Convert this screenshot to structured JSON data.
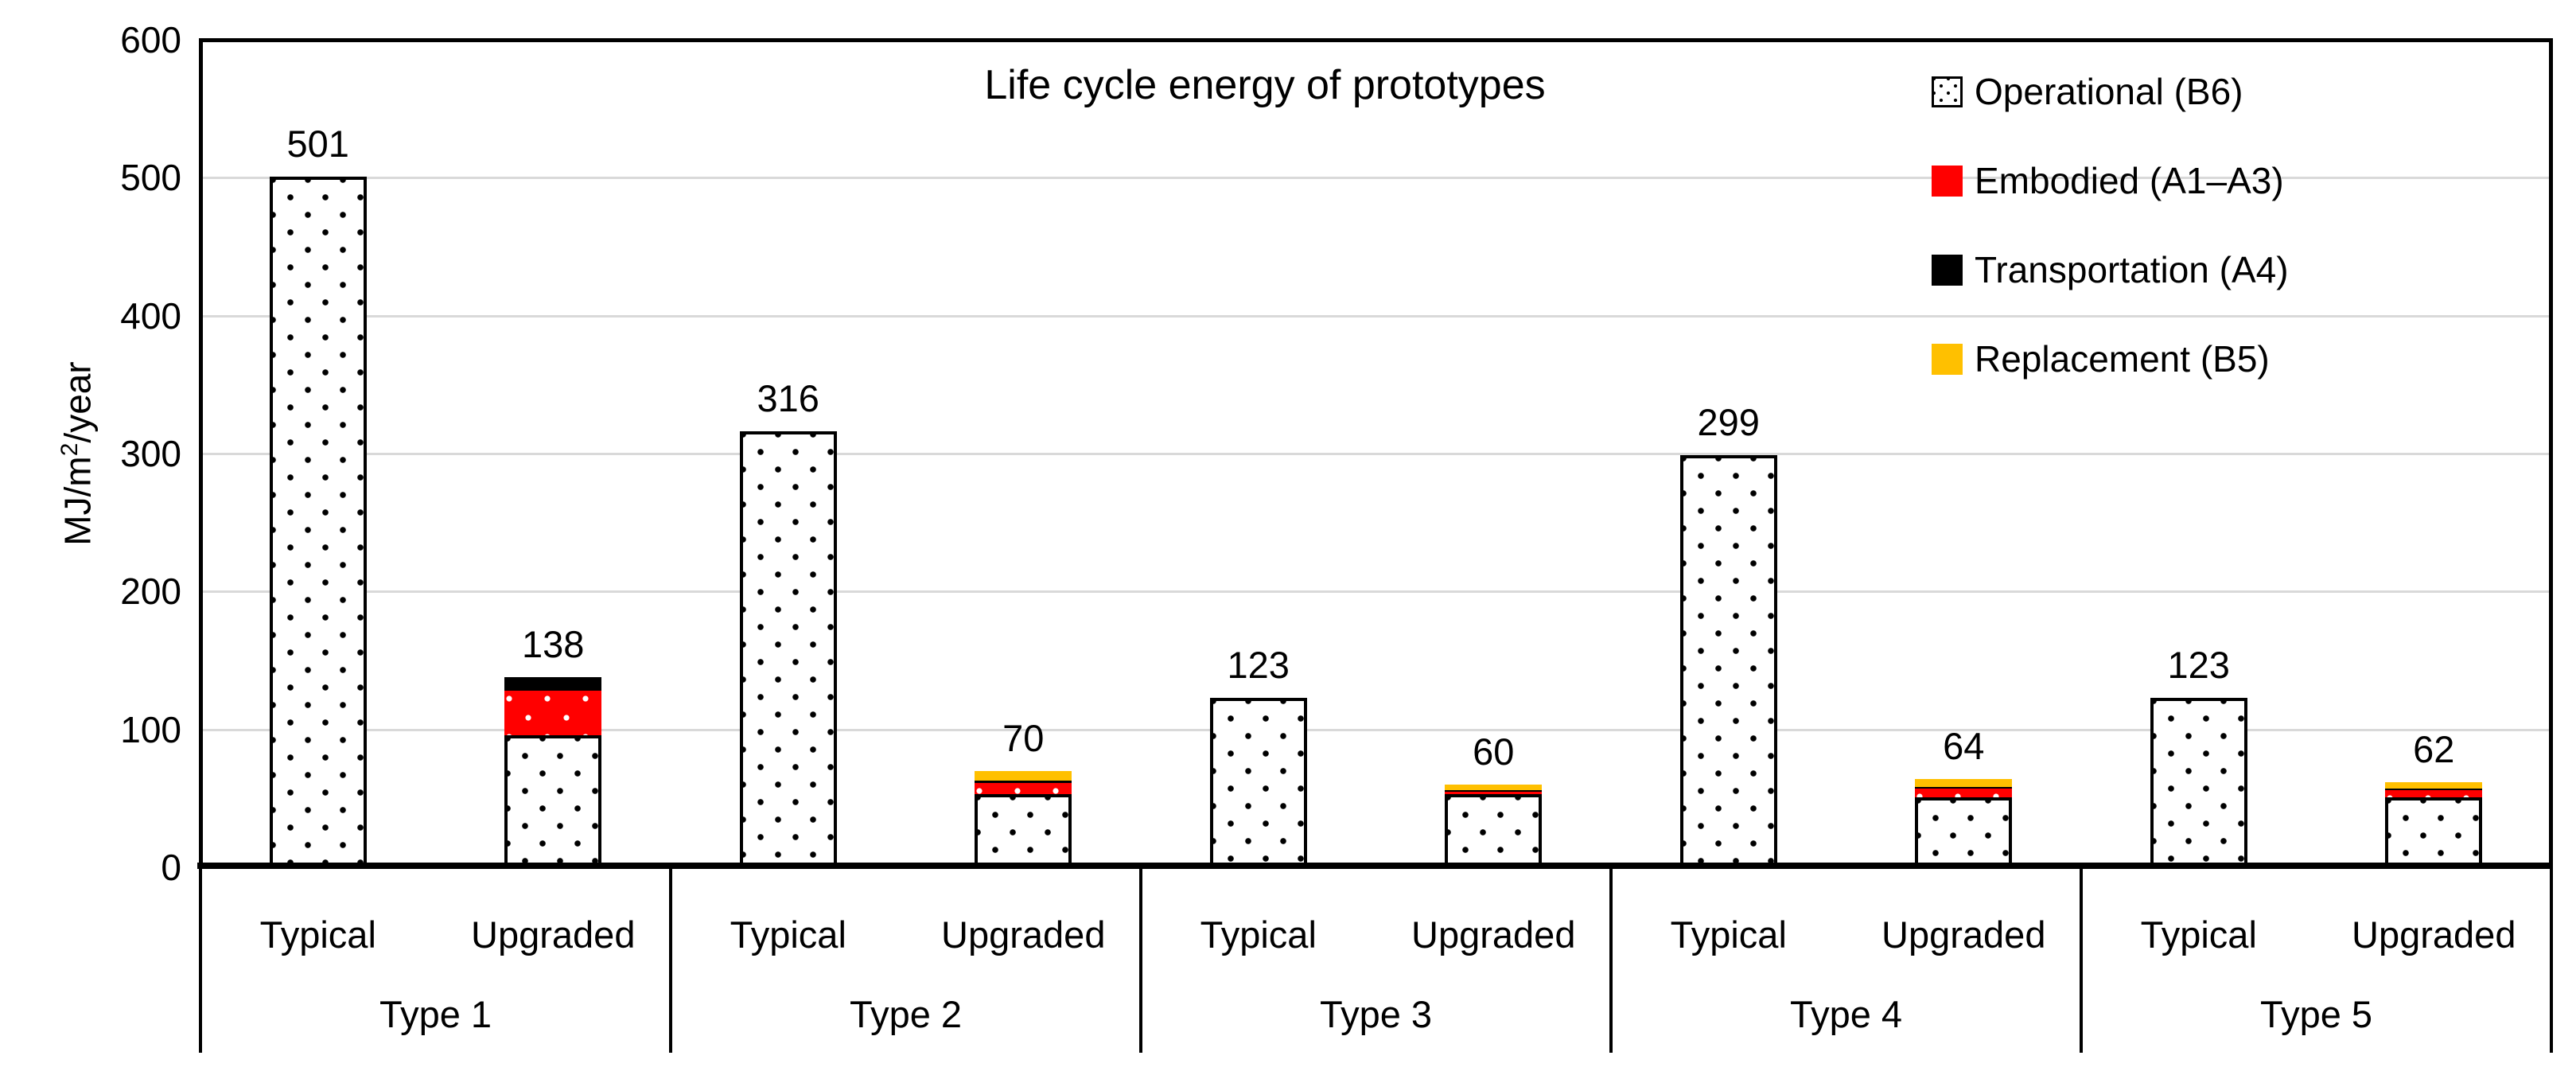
{
  "colors": {
    "background": "#FFFFFF",
    "axis": "#000000",
    "gridline": "#D9D9D9",
    "operational_pattern_dot": "#000000",
    "operational_fill": "#FFFFFF",
    "embodied": "#FF0000",
    "transportation": "#000000",
    "replacement": "#FFC000",
    "text": "#000000"
  },
  "chart_data": {
    "type": "bar",
    "stacked": true,
    "title": "Life cycle energy of prototypes",
    "y_axis": {
      "label_prefix": "MJ/m",
      "label_sup": "2",
      "label_suffix": "/year",
      "min": 0,
      "max": 600,
      "tick_step": 100,
      "ticks": [
        "0",
        "100",
        "200",
        "300",
        "400",
        "500",
        "600"
      ],
      "grid": true
    },
    "group_labels": [
      "Type 1",
      "Type 2",
      "Type 3",
      "Type 4",
      "Type 5"
    ],
    "sub_labels": [
      "Typical",
      "Upgraded"
    ],
    "legend_position": "top-right-inside",
    "series": [
      {
        "name": "Operational (B6)",
        "key": "operational-b6",
        "fill": "dots",
        "values": [
          501,
          96,
          316,
          53,
          123,
          53,
          299,
          51,
          123,
          51
        ]
      },
      {
        "name": "Embodied (A1–A3)",
        "key": "embodied-a1-a3",
        "fill": "red",
        "values": [
          0,
          32,
          0,
          8,
          0,
          2,
          0,
          6,
          0,
          5
        ]
      },
      {
        "name": "Transportation (A4)",
        "key": "transportation-a4",
        "fill": "black",
        "values": [
          0,
          10,
          0,
          2,
          0,
          1,
          0,
          1,
          0,
          1
        ]
      },
      {
        "name": "Replacement (B5)",
        "key": "replacement-b5",
        "fill": "gold",
        "values": [
          0,
          0,
          0,
          7,
          0,
          4,
          0,
          6,
          0,
          5
        ]
      }
    ],
    "bar_total_labels": [
      "501",
      "138",
      "316",
      "70",
      "123",
      "60",
      "299",
      "64",
      "123",
      "62"
    ]
  }
}
